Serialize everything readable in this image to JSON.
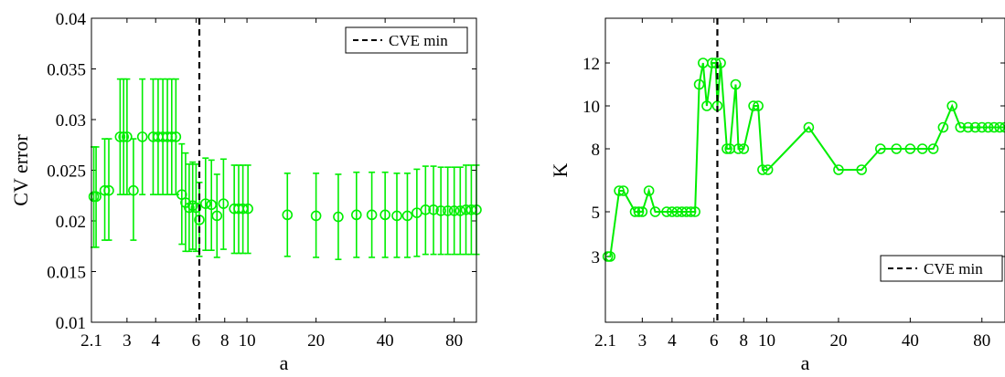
{
  "chart_data": [
    {
      "type": "scatter",
      "xlabel": "a",
      "ylabel": "CV error",
      "x_scale": "log",
      "xlim": [
        2.1,
        100
      ],
      "ylim": [
        0.01,
        0.04
      ],
      "x_ticks": [
        2.1,
        3,
        4,
        6,
        8,
        10,
        20,
        40,
        80
      ],
      "x_tick_labels": [
        "2.1",
        "3",
        "4",
        "6",
        "8",
        "10",
        "20",
        "40",
        "80"
      ],
      "y_ticks": [
        0.01,
        0.015,
        0.02,
        0.025,
        0.03,
        0.035,
        0.04
      ],
      "y_tick_labels": [
        "0.01",
        "0.015",
        "0.02",
        "0.025",
        "0.03",
        "0.035",
        "0.04"
      ],
      "vline": {
        "x": 6.2,
        "label": "CVE min",
        "style": "dashed",
        "color": "#000000"
      },
      "legend": {
        "location": "top-right",
        "entries": [
          "CVE min"
        ]
      },
      "series": [
        {
          "color": "#00ee00",
          "marker": "circle",
          "error_bars": true,
          "points": [
            {
              "x": 2.15,
              "y": 0.0224,
              "lo": 0.0174,
              "hi": 0.0273
            },
            {
              "x": 2.2,
              "y": 0.0224,
              "lo": 0.0174,
              "hi": 0.0273
            },
            {
              "x": 2.4,
              "y": 0.023,
              "lo": 0.0181,
              "hi": 0.0281
            },
            {
              "x": 2.5,
              "y": 0.023,
              "lo": 0.0181,
              "hi": 0.0281
            },
            {
              "x": 2.8,
              "y": 0.0283,
              "lo": 0.0226,
              "hi": 0.034
            },
            {
              "x": 2.9,
              "y": 0.0283,
              "lo": 0.0226,
              "hi": 0.034
            },
            {
              "x": 3.0,
              "y": 0.0283,
              "lo": 0.0226,
              "hi": 0.034
            },
            {
              "x": 3.2,
              "y": 0.023,
              "lo": 0.0181,
              "hi": 0.0281
            },
            {
              "x": 3.5,
              "y": 0.0283,
              "lo": 0.0226,
              "hi": 0.034
            },
            {
              "x": 3.9,
              "y": 0.0283,
              "lo": 0.0226,
              "hi": 0.034
            },
            {
              "x": 4.1,
              "y": 0.0283,
              "lo": 0.0226,
              "hi": 0.034
            },
            {
              "x": 4.3,
              "y": 0.0283,
              "lo": 0.0226,
              "hi": 0.034
            },
            {
              "x": 4.5,
              "y": 0.0283,
              "lo": 0.0226,
              "hi": 0.034
            },
            {
              "x": 4.7,
              "y": 0.0283,
              "lo": 0.0226,
              "hi": 0.034
            },
            {
              "x": 4.9,
              "y": 0.0283,
              "lo": 0.0226,
              "hi": 0.034
            },
            {
              "x": 5.2,
              "y": 0.0226,
              "lo": 0.0177,
              "hi": 0.0276
            },
            {
              "x": 5.4,
              "y": 0.0218,
              "lo": 0.017,
              "hi": 0.0267
            },
            {
              "x": 5.6,
              "y": 0.0213,
              "lo": 0.017,
              "hi": 0.0256
            },
            {
              "x": 5.8,
              "y": 0.0215,
              "lo": 0.0172,
              "hi": 0.0258
            },
            {
              "x": 6.0,
              "y": 0.0213,
              "lo": 0.017,
              "hi": 0.0256
            },
            {
              "x": 6.2,
              "y": 0.0201,
              "lo": 0.0165,
              "hi": 0.0238
            },
            {
              "x": 6.6,
              "y": 0.0217,
              "lo": 0.0171,
              "hi": 0.0262
            },
            {
              "x": 7.0,
              "y": 0.0216,
              "lo": 0.0171,
              "hi": 0.026
            },
            {
              "x": 7.4,
              "y": 0.0205,
              "lo": 0.0164,
              "hi": 0.0246
            },
            {
              "x": 7.9,
              "y": 0.0217,
              "lo": 0.0172,
              "hi": 0.0261
            },
            {
              "x": 8.8,
              "y": 0.0212,
              "lo": 0.0168,
              "hi": 0.0255
            },
            {
              "x": 9.2,
              "y": 0.0212,
              "lo": 0.0168,
              "hi": 0.0255
            },
            {
              "x": 9.6,
              "y": 0.0212,
              "lo": 0.0168,
              "hi": 0.0255
            },
            {
              "x": 10.1,
              "y": 0.0212,
              "lo": 0.0168,
              "hi": 0.0255
            },
            {
              "x": 15.0,
              "y": 0.0206,
              "lo": 0.0165,
              "hi": 0.0247
            },
            {
              "x": 20.0,
              "y": 0.0205,
              "lo": 0.0164,
              "hi": 0.0247
            },
            {
              "x": 25.0,
              "y": 0.0204,
              "lo": 0.0162,
              "hi": 0.0246
            },
            {
              "x": 30.0,
              "y": 0.0206,
              "lo": 0.0164,
              "hi": 0.0248
            },
            {
              "x": 35.0,
              "y": 0.0206,
              "lo": 0.0164,
              "hi": 0.0248
            },
            {
              "x": 40.0,
              "y": 0.0206,
              "lo": 0.0164,
              "hi": 0.0248
            },
            {
              "x": 45.0,
              "y": 0.0205,
              "lo": 0.0164,
              "hi": 0.0247
            },
            {
              "x": 50.0,
              "y": 0.0205,
              "lo": 0.0164,
              "hi": 0.0247
            },
            {
              "x": 55.0,
              "y": 0.0208,
              "lo": 0.0165,
              "hi": 0.0251
            },
            {
              "x": 60.0,
              "y": 0.0211,
              "lo": 0.0167,
              "hi": 0.0254
            },
            {
              "x": 65.0,
              "y": 0.0211,
              "lo": 0.0167,
              "hi": 0.0254
            },
            {
              "x": 70.0,
              "y": 0.021,
              "lo": 0.0167,
              "hi": 0.0253
            },
            {
              "x": 75.0,
              "y": 0.021,
              "lo": 0.0167,
              "hi": 0.0253
            },
            {
              "x": 80.0,
              "y": 0.021,
              "lo": 0.0167,
              "hi": 0.0253
            },
            {
              "x": 85.0,
              "y": 0.021,
              "lo": 0.0167,
              "hi": 0.0253
            },
            {
              "x": 90.0,
              "y": 0.0211,
              "lo": 0.0167,
              "hi": 0.0255
            },
            {
              "x": 95.0,
              "y": 0.0211,
              "lo": 0.0167,
              "hi": 0.0255
            },
            {
              "x": 100.0,
              "y": 0.0211,
              "lo": 0.0167,
              "hi": 0.0255
            }
          ]
        }
      ]
    },
    {
      "type": "line",
      "xlabel": "a",
      "ylabel": "K",
      "x_scale": "log",
      "xlim": [
        2.1,
        100
      ],
      "ylim": [
        1.5,
        14.5
      ],
      "x_ticks": [
        2.1,
        3,
        4,
        6,
        8,
        10,
        20,
        40,
        80
      ],
      "x_tick_labels": [
        "2.1",
        "3",
        "4",
        "6",
        "8",
        "10",
        "20",
        "40",
        "80"
      ],
      "y_ticks": [
        3,
        5,
        8,
        10,
        12
      ],
      "y_tick_labels": [
        "3",
        "5",
        "8",
        "10",
        "12"
      ],
      "vline": {
        "x": 6.2,
        "label": "CVE min",
        "style": "dashed",
        "color": "#000000"
      },
      "legend": {
        "location": "bottom-right",
        "entries": [
          "CVE min"
        ]
      },
      "series": [
        {
          "color": "#00ee00",
          "marker": "circle",
          "x": [
            2.15,
            2.2,
            2.4,
            2.5,
            2.8,
            2.9,
            3.0,
            3.2,
            3.4,
            3.8,
            4.0,
            4.2,
            4.4,
            4.6,
            4.8,
            5.0,
            5.2,
            5.4,
            5.6,
            5.9,
            6.1,
            6.2,
            6.4,
            6.8,
            7.0,
            7.4,
            7.6,
            8.0,
            8.8,
            9.2,
            9.6,
            10.1,
            15.0,
            20.0,
            25.0,
            30.0,
            35.0,
            40.0,
            45.0,
            50.0,
            55.0,
            60.0,
            65.0,
            70.0,
            75.0,
            80.0,
            85.0,
            90.0,
            95.0,
            100.0
          ],
          "y": [
            3,
            3,
            6,
            6,
            5,
            5,
            5,
            6,
            5,
            5,
            5,
            5,
            5,
            5,
            5,
            5,
            11,
            12,
            10,
            12,
            12,
            10,
            12,
            8,
            8,
            11,
            8,
            8,
            10,
            10,
            7,
            7,
            9,
            7,
            7,
            8,
            8,
            8,
            8,
            8,
            9,
            10,
            9,
            9,
            9,
            9,
            9,
            9,
            9,
            9
          ]
        }
      ]
    }
  ]
}
